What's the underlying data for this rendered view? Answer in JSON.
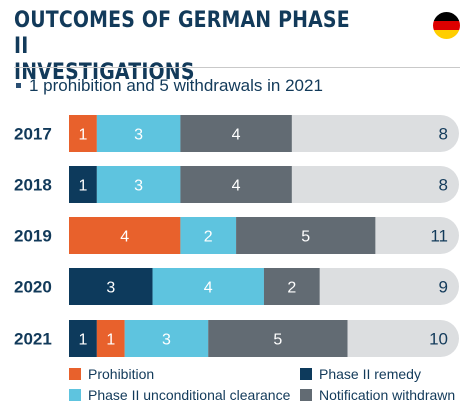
{
  "header": {
    "title_line1": "OUTCOMES OF GERMAN PHASE II",
    "title_line2": "INVESTIGATIONS",
    "subtitle": "1 prohibition and 5 withdrawals in 2021",
    "flag_colors": [
      "#000000",
      "#dd0000",
      "#ffce00"
    ]
  },
  "colors": {
    "prohibition": "#e8612c",
    "remedy": "#0d3a5c",
    "unconditional": "#5ec4df",
    "withdrawn": "#626b73",
    "track": "#dcdee0",
    "year_text": "#123a5a",
    "total_text": "#123a5a"
  },
  "chart_data": {
    "type": "bar",
    "orientation": "horizontal",
    "stacked": true,
    "title": "OUTCOMES OF GERMAN PHASE II INVESTIGATIONS",
    "subtitle": "1 prohibition and 5 withdrawals in 2021",
    "categories": [
      "2017",
      "2018",
      "2019",
      "2020",
      "2021"
    ],
    "series": [
      {
        "key": "remedy",
        "name": "Phase II remedy",
        "values": [
          0,
          1,
          0,
          3,
          1
        ]
      },
      {
        "key": "prohibition",
        "name": "Prohibition",
        "values": [
          1,
          0,
          4,
          0,
          1
        ]
      },
      {
        "key": "unconditional",
        "name": "Phase II unconditional clearance",
        "values": [
          3,
          3,
          2,
          4,
          3
        ]
      },
      {
        "key": "withdrawn",
        "name": "Notification withdrawn",
        "values": [
          4,
          4,
          5,
          2,
          5
        ]
      }
    ],
    "totals": [
      8,
      8,
      11,
      9,
      10
    ],
    "legend_position": "bottom",
    "grid": false
  },
  "legend": [
    {
      "key": "prohibition",
      "label": "Prohibition"
    },
    {
      "key": "remedy",
      "label": "Phase II remedy"
    },
    {
      "key": "unconditional",
      "label": "Phase II unconditional clearance"
    },
    {
      "key": "withdrawn",
      "label": "Notification withdrawn"
    }
  ]
}
